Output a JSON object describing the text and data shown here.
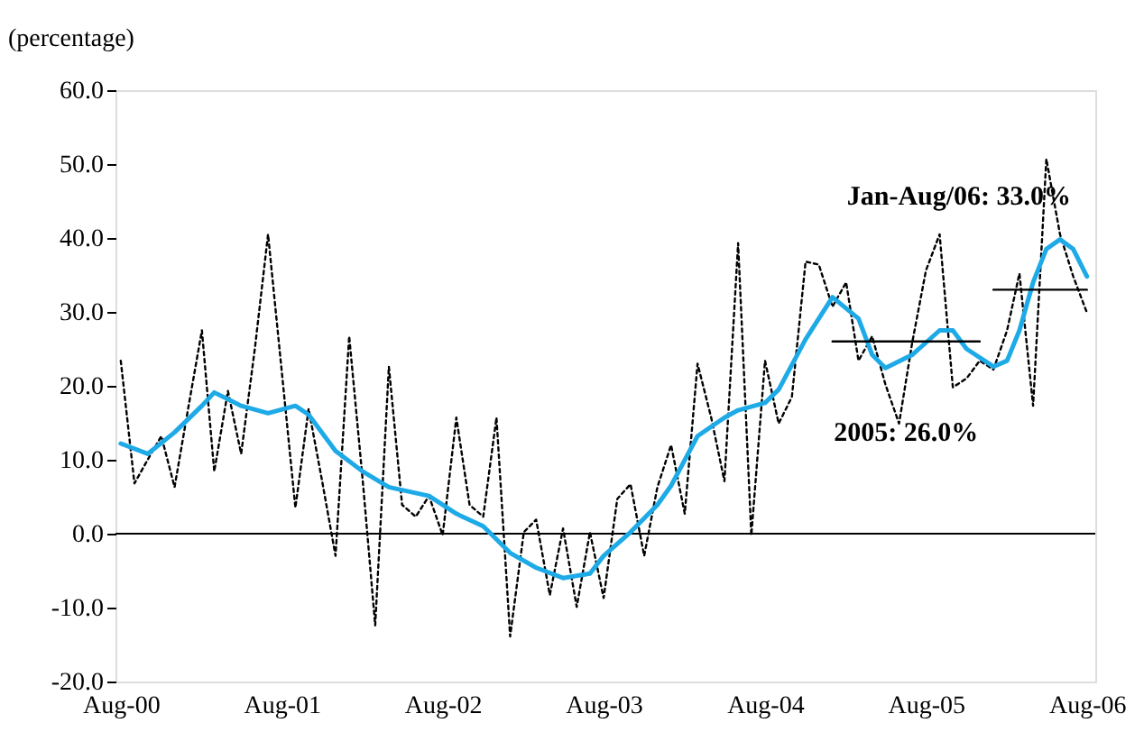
{
  "chart_data": {
    "type": "line",
    "ylabel": "(percentage)",
    "x": [
      "2000-08",
      "2000-09",
      "2000-10",
      "2000-11",
      "2000-12",
      "2001-01",
      "2001-02",
      "2001-03",
      "2001-04",
      "2001-05",
      "2001-06",
      "2001-07",
      "2001-08",
      "2001-09",
      "2001-10",
      "2001-11",
      "2001-12",
      "2002-01",
      "2002-02",
      "2002-03",
      "2002-04",
      "2002-05",
      "2002-06",
      "2002-07",
      "2002-08",
      "2002-09",
      "2002-10",
      "2002-11",
      "2002-12",
      "2003-01",
      "2003-02",
      "2003-03",
      "2003-04",
      "2003-05",
      "2003-06",
      "2003-07",
      "2003-08",
      "2003-09",
      "2003-10",
      "2003-11",
      "2003-12",
      "2004-01",
      "2004-02",
      "2004-03",
      "2004-04",
      "2004-05",
      "2004-06",
      "2004-07",
      "2004-08",
      "2004-09",
      "2004-10",
      "2004-11",
      "2004-12",
      "2005-01",
      "2005-02",
      "2005-03",
      "2005-04",
      "2005-05",
      "2005-06",
      "2005-07",
      "2005-08",
      "2005-09",
      "2005-10",
      "2005-11",
      "2005-12",
      "2006-01",
      "2006-02",
      "2006-03",
      "2006-04",
      "2006-05",
      "2006-06",
      "2006-07",
      "2006-08"
    ],
    "series": [
      {
        "color": "#000000",
        "line_style": "dotted",
        "values": [
          23.4,
          6.8,
          10,
          13.2,
          6.3,
          17,
          27.5,
          8.4,
          19.3,
          10.8,
          25,
          40.5,
          22,
          3.5,
          16.9,
          7,
          -3,
          26.7,
          7,
          -12.4,
          22.6,
          3.9,
          2.3,
          5.1,
          -0.2,
          15.7,
          3.9,
          2.3,
          15.7,
          -13.9,
          0.2,
          1.9,
          -8.3,
          0.7,
          -9.9,
          0.2,
          -8.7,
          4.7,
          6.7,
          -3,
          6.3,
          12,
          2.7,
          23,
          15.7,
          7.1,
          39.3,
          -0.2,
          23.4,
          14.9,
          18.5,
          36.8,
          36.4,
          30.7,
          34,
          23.4,
          26.7,
          20.2,
          14.9,
          25.9,
          35.6,
          40.5,
          19.8,
          21,
          23.4,
          22.2,
          27.5,
          35.2,
          17.3,
          50.7,
          40.5,
          34.8,
          29.9
        ]
      },
      {
        "color": "#1eaae7",
        "line_style": "solid",
        "x": [
          "2000-08",
          "2000-10",
          "2000-12",
          "2001-02",
          "2001-03",
          "2001-05",
          "2001-07",
          "2001-09",
          "2001-10",
          "2001-12",
          "2002-02",
          "2002-04",
          "2002-07",
          "2002-09",
          "2002-11",
          "2003-01",
          "2003-03",
          "2003-05",
          "2003-07",
          "2003-08",
          "2003-10",
          "2003-12",
          "2004-01",
          "2004-03",
          "2004-05",
          "2004-06",
          "2004-08",
          "2004-09",
          "2004-11",
          "2005-01",
          "2005-03",
          "2005-04",
          "2005-05",
          "2005-07",
          "2005-09",
          "2005-10",
          "2005-11",
          "2006-01",
          "2006-02",
          "2006-03",
          "2006-04",
          "2006-05",
          "2006-06",
          "2006-07",
          "2006-08"
        ],
        "values": [
          12.2,
          10.8,
          13.7,
          17.3,
          19.1,
          17.3,
          16.3,
          17.3,
          16.1,
          11.2,
          8.4,
          6.3,
          5.1,
          2.7,
          1.0,
          -2.6,
          -4.6,
          -6.0,
          -5.4,
          -3.0,
          0.2,
          3.9,
          6.5,
          13.2,
          15.7,
          16.7,
          17.7,
          19.5,
          26.3,
          32.0,
          29.1,
          24.2,
          22.4,
          24.2,
          27.5,
          27.5,
          25.0,
          22.6,
          23.4,
          27.5,
          34.0,
          38.5,
          39.8,
          38.5,
          34.8
        ]
      },
      {
        "color": "#000000",
        "line_style": "solid",
        "x": [
          "2005-01",
          "2005-12"
        ],
        "values": [
          26.0,
          26.0
        ]
      },
      {
        "color": "#000000",
        "line_style": "solid",
        "x": [
          "2006-01",
          "2006-08"
        ],
        "values": [
          33.0,
          33.0
        ]
      }
    ],
    "annotations": [
      "2005: 26.0%",
      "Jan-Aug/06: 33.0%"
    ],
    "xlim": [
      "2000-07-20",
      "2006-08-20"
    ],
    "xticks": [
      {
        "value": "2000-08",
        "label": "Aug-00"
      },
      {
        "value": "2001-08",
        "label": "Aug-01"
      },
      {
        "value": "2002-08",
        "label": "Aug-02"
      },
      {
        "value": "2003-08",
        "label": "Aug-03"
      },
      {
        "value": "2004-08",
        "label": "Aug-04"
      },
      {
        "value": "2005-08",
        "label": "Aug-05"
      },
      {
        "value": "2006-08",
        "label": "Aug-06"
      }
    ],
    "ylim": [
      -20,
      60
    ],
    "yticks": [
      {
        "value": -20,
        "label": "-20.0"
      },
      {
        "value": -10,
        "label": "-10.0"
      },
      {
        "value": 0,
        "label": "0.0"
      },
      {
        "value": 10,
        "label": "10.0"
      },
      {
        "value": 20,
        "label": "20.0"
      },
      {
        "value": 30,
        "label": "30.0"
      },
      {
        "value": 40,
        "label": "40.0"
      },
      {
        "value": 50,
        "label": "50.0"
      },
      {
        "value": 60,
        "label": "60.0"
      }
    ],
    "grid": false,
    "marker": "none"
  }
}
